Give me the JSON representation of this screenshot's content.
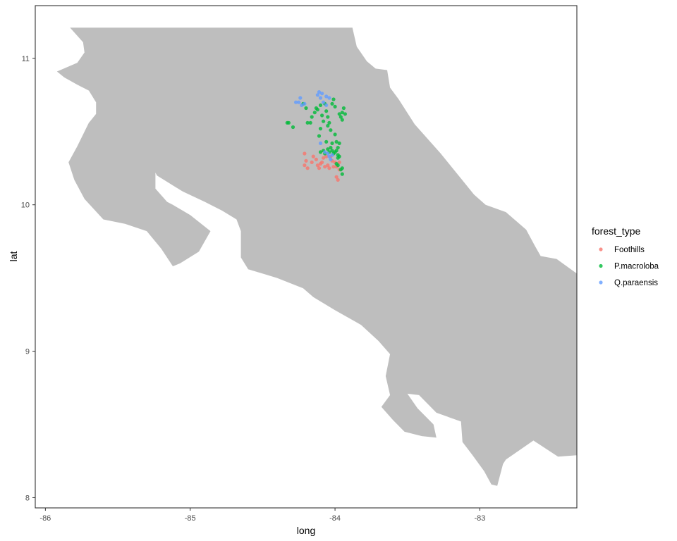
{
  "chart_data": {
    "type": "scatter",
    "title": "",
    "xlabel": "long",
    "ylabel": "lat",
    "xlim": [
      -86.07,
      -82.33
    ],
    "ylim": [
      7.93,
      11.36
    ],
    "x_ticks": [
      -86,
      -85,
      -84,
      -83
    ],
    "y_ticks": [
      8,
      9,
      10,
      11
    ],
    "x_tick_labels": [
      "-86",
      "-85",
      "-84",
      "-83"
    ],
    "y_tick_labels": [
      "8",
      "9",
      "10",
      "11"
    ],
    "grid": false,
    "legend": {
      "title": "forest_type",
      "placement": "right"
    },
    "land_color": "#bebebe",
    "land_outline": [
      [
        -85.83,
        11.21
      ],
      [
        -83.88,
        11.21
      ],
      [
        -83.85,
        11.08
      ],
      [
        -83.78,
        10.98
      ],
      [
        -83.72,
        10.93
      ],
      [
        -83.64,
        10.92
      ],
      [
        -83.62,
        10.8
      ],
      [
        -83.56,
        10.72
      ],
      [
        -83.45,
        10.55
      ],
      [
        -83.27,
        10.35
      ],
      [
        -83.04,
        10.07
      ],
      [
        -82.96,
        10.0
      ],
      [
        -82.82,
        9.95
      ],
      [
        -82.68,
        9.83
      ],
      [
        -82.62,
        9.72
      ],
      [
        -82.58,
        9.65
      ],
      [
        -82.47,
        9.63
      ],
      [
        -82.33,
        9.53
      ],
      [
        -82.33,
        8.29
      ],
      [
        -82.46,
        8.28
      ],
      [
        -82.63,
        8.39
      ],
      [
        -82.82,
        8.26
      ],
      [
        -82.84,
        8.23
      ],
      [
        -82.88,
        8.08
      ],
      [
        -82.92,
        8.09
      ],
      [
        -82.97,
        8.18
      ],
      [
        -83.05,
        8.29
      ],
      [
        -83.12,
        8.38
      ],
      [
        -83.13,
        8.52
      ],
      [
        -83.3,
        8.58
      ],
      [
        -83.42,
        8.7
      ],
      [
        -83.5,
        8.71
      ],
      [
        -83.43,
        8.61
      ],
      [
        -83.32,
        8.5
      ],
      [
        -83.3,
        8.41
      ],
      [
        -83.4,
        8.42
      ],
      [
        -83.52,
        8.45
      ],
      [
        -83.6,
        8.53
      ],
      [
        -83.68,
        8.62
      ],
      [
        -83.62,
        8.7
      ],
      [
        -83.65,
        8.83
      ],
      [
        -83.62,
        8.98
      ],
      [
        -83.7,
        9.07
      ],
      [
        -83.82,
        9.18
      ],
      [
        -84.0,
        9.28
      ],
      [
        -84.15,
        9.37
      ],
      [
        -84.22,
        9.43
      ],
      [
        -84.4,
        9.5
      ],
      [
        -84.6,
        9.56
      ],
      [
        -84.65,
        9.64
      ],
      [
        -84.65,
        9.72
      ],
      [
        -84.65,
        9.82
      ],
      [
        -84.68,
        9.9
      ],
      [
        -84.78,
        9.96
      ],
      [
        -84.9,
        10.02
      ],
      [
        -85.05,
        10.09
      ],
      [
        -85.1,
        10.12
      ],
      [
        -85.23,
        10.2
      ],
      [
        -85.24,
        10.22
      ],
      [
        -85.24,
        10.11
      ],
      [
        -85.16,
        10.02
      ],
      [
        -85.12,
        10.0
      ],
      [
        -85.0,
        9.93
      ],
      [
        -84.86,
        9.82
      ],
      [
        -84.94,
        9.68
      ],
      [
        -85.07,
        9.6
      ],
      [
        -85.12,
        9.58
      ],
      [
        -85.2,
        9.7
      ],
      [
        -85.3,
        9.82
      ],
      [
        -85.45,
        9.87
      ],
      [
        -85.6,
        9.9
      ],
      [
        -85.73,
        10.04
      ],
      [
        -85.8,
        10.17
      ],
      [
        -85.84,
        10.29
      ],
      [
        -85.78,
        10.4
      ],
      [
        -85.7,
        10.56
      ],
      [
        -85.65,
        10.62
      ],
      [
        -85.65,
        10.7
      ],
      [
        -85.7,
        10.78
      ],
      [
        -85.78,
        10.82
      ],
      [
        -85.87,
        10.87
      ],
      [
        -85.92,
        10.91
      ],
      [
        -85.78,
        10.97
      ],
      [
        -85.73,
        11.04
      ],
      [
        -85.74,
        11.11
      ],
      [
        -85.83,
        11.21
      ]
    ],
    "series": [
      {
        "name": "Foothills",
        "color": "#f8766d",
        "points": [
          [
            -84.21,
            10.35
          ],
          [
            -84.21,
            10.27
          ],
          [
            -84.2,
            10.3
          ],
          [
            -84.19,
            10.25
          ],
          [
            -84.16,
            10.29
          ],
          [
            -84.15,
            10.33
          ],
          [
            -84.13,
            10.31
          ],
          [
            -84.12,
            10.27
          ],
          [
            -84.11,
            10.25
          ],
          [
            -84.1,
            10.28
          ],
          [
            -84.09,
            10.29
          ],
          [
            -84.08,
            10.32
          ],
          [
            -84.07,
            10.26
          ],
          [
            -84.06,
            10.33
          ],
          [
            -84.05,
            10.27
          ],
          [
            -84.04,
            10.25
          ],
          [
            -84.03,
            10.33
          ],
          [
            -84.02,
            10.3
          ],
          [
            -84.01,
            10.26
          ],
          [
            -84.0,
            10.29
          ],
          [
            -83.99,
            10.26
          ],
          [
            -83.99,
            10.19
          ],
          [
            -83.98,
            10.17
          ],
          [
            -83.97,
            10.24
          ],
          [
            -83.97,
            10.29
          ]
        ]
      },
      {
        "name": "P.macroloba",
        "color": "#00ba38",
        "points": [
          [
            -84.33,
            10.56
          ],
          [
            -84.32,
            10.56
          ],
          [
            -84.29,
            10.53
          ],
          [
            -84.22,
            10.69
          ],
          [
            -84.2,
            10.66
          ],
          [
            -84.19,
            10.56
          ],
          [
            -84.17,
            10.56
          ],
          [
            -84.16,
            10.6
          ],
          [
            -84.14,
            10.63
          ],
          [
            -84.13,
            10.66
          ],
          [
            -84.12,
            10.65
          ],
          [
            -84.11,
            10.47
          ],
          [
            -84.1,
            10.52
          ],
          [
            -84.1,
            10.68
          ],
          [
            -84.09,
            10.61
          ],
          [
            -84.08,
            10.57
          ],
          [
            -84.07,
            10.69
          ],
          [
            -84.06,
            10.64
          ],
          [
            -84.05,
            10.6
          ],
          [
            -84.05,
            10.54
          ],
          [
            -84.04,
            10.56
          ],
          [
            -84.03,
            10.51
          ],
          [
            -84.02,
            10.69
          ],
          [
            -84.01,
            10.72
          ],
          [
            -84.0,
            10.67
          ],
          [
            -84.0,
            10.48
          ],
          [
            -83.99,
            10.43
          ],
          [
            -83.98,
            10.39
          ],
          [
            -83.97,
            10.42
          ],
          [
            -84.02,
            10.42
          ],
          [
            -84.06,
            10.43
          ],
          [
            -84.08,
            10.37
          ],
          [
            -84.07,
            10.35
          ],
          [
            -84.05,
            10.38
          ],
          [
            -84.04,
            10.36
          ],
          [
            -84.03,
            10.39
          ],
          [
            -84.02,
            10.37
          ],
          [
            -84.01,
            10.35
          ],
          [
            -84.0,
            10.36
          ],
          [
            -83.99,
            10.37
          ],
          [
            -83.98,
            10.34
          ],
          [
            -83.97,
            10.33
          ],
          [
            -83.98,
            10.32
          ],
          [
            -83.96,
            10.24
          ],
          [
            -83.95,
            10.25
          ],
          [
            -83.95,
            10.21
          ],
          [
            -83.98,
            10.27
          ],
          [
            -83.99,
            10.28
          ],
          [
            -83.97,
            10.62
          ],
          [
            -83.96,
            10.6
          ],
          [
            -83.95,
            10.63
          ],
          [
            -83.94,
            10.66
          ],
          [
            -83.95,
            10.58
          ],
          [
            -83.93,
            10.62
          ],
          [
            -84.1,
            10.36
          ]
        ]
      },
      {
        "name": "Q.paraensis",
        "color": "#619cff",
        "points": [
          [
            -84.27,
            10.7
          ],
          [
            -84.25,
            10.7
          ],
          [
            -84.24,
            10.73
          ],
          [
            -84.23,
            10.68
          ],
          [
            -84.21,
            10.69
          ],
          [
            -84.12,
            10.75
          ],
          [
            -84.11,
            10.77
          ],
          [
            -84.1,
            10.73
          ],
          [
            -84.09,
            10.76
          ],
          [
            -84.08,
            10.7
          ],
          [
            -84.06,
            10.74
          ],
          [
            -84.04,
            10.73
          ],
          [
            -84.06,
            10.68
          ],
          [
            -84.1,
            10.42
          ],
          [
            -84.07,
            10.36
          ],
          [
            -84.05,
            10.35
          ],
          [
            -84.04,
            10.33
          ],
          [
            -84.03,
            10.31
          ],
          [
            -84.02,
            10.34
          ]
        ]
      }
    ]
  }
}
